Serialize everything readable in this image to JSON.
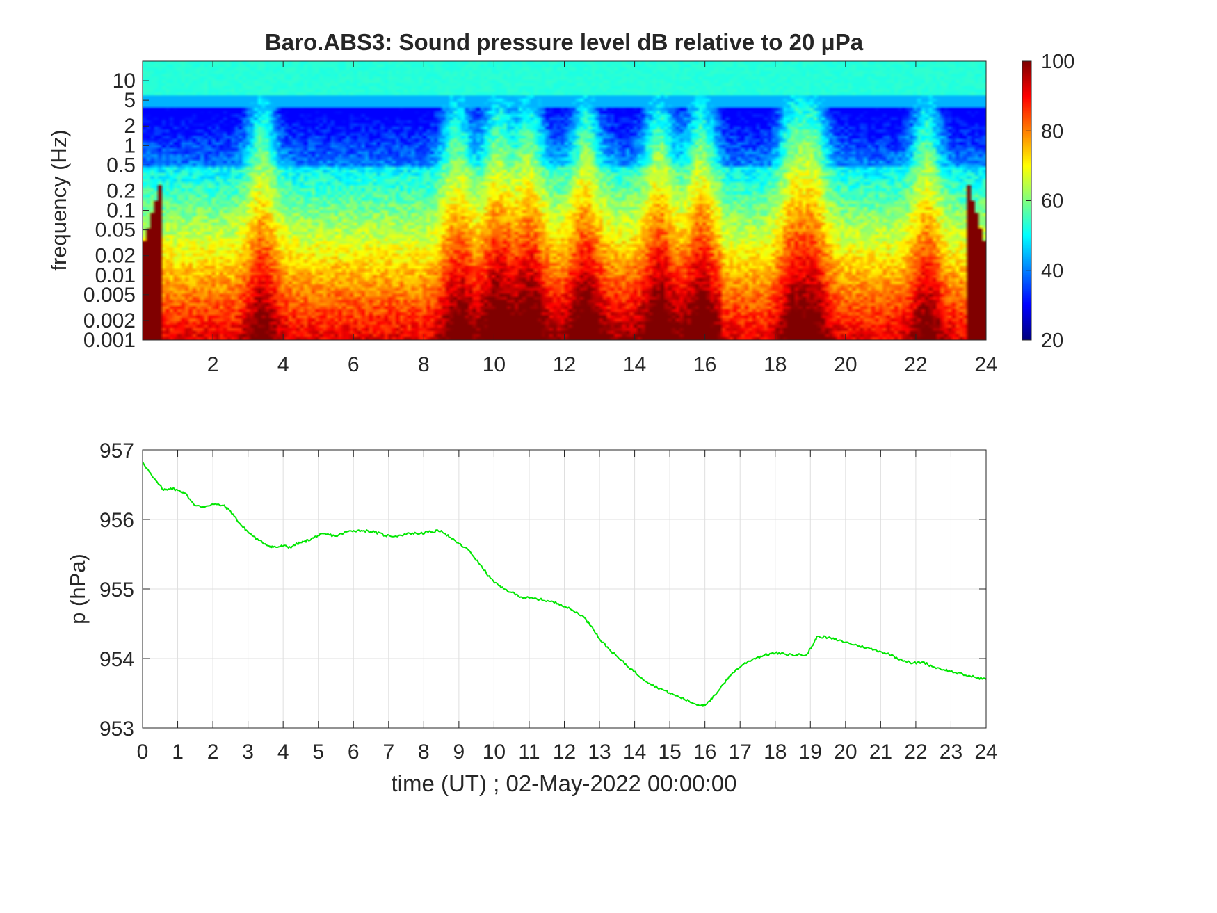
{
  "chart_data": [
    {
      "type": "heatmap",
      "title": "Baro.ABS3: Sound pressure level dB relative to 20 μPa",
      "xlabel": "",
      "ylabel": "frequency (Hz)",
      "x_range": [
        0,
        24
      ],
      "x_ticks": [
        "2",
        "4",
        "6",
        "8",
        "10",
        "12",
        "14",
        "16",
        "18",
        "20",
        "22",
        "24"
      ],
      "y_scale": "log",
      "y_range": [
        0.001,
        20
      ],
      "y_ticks": [
        "0.001",
        "0.002",
        "0.005",
        "0.01",
        "0.02",
        "0.05",
        "0.1",
        "0.2",
        "0.5",
        "1",
        "2",
        "5",
        "10"
      ],
      "colorbar": {
        "min": 20,
        "max": 100,
        "ticks": [
          "20",
          "40",
          "60",
          "80",
          "100"
        ],
        "colormap": "jet"
      },
      "activity_peaks_hours": [
        3.4,
        8.9,
        10.1,
        11.0,
        12.6,
        14.7,
        15.9,
        18.5,
        19.1,
        22.3
      ],
      "high_freq_band_db": 50,
      "quiet_band_hz": [
        0.5,
        4
      ],
      "grid": false
    },
    {
      "type": "line",
      "title": "",
      "xlabel": "time (UT) ; 02-May-2022 00:00:00",
      "ylabel": "p (hPa)",
      "xlim": [
        0,
        24
      ],
      "ylim": [
        953,
        957
      ],
      "x_ticks": [
        "0",
        "1",
        "2",
        "3",
        "4",
        "5",
        "6",
        "7",
        "8",
        "9",
        "10",
        "11",
        "12",
        "13",
        "14",
        "15",
        "16",
        "17",
        "18",
        "19",
        "20",
        "21",
        "22",
        "23",
        "24"
      ],
      "y_ticks": [
        "953",
        "954",
        "955",
        "956",
        "957"
      ],
      "grid": true,
      "line_color": "#00e600",
      "x": [
        0,
        0.3,
        0.6,
        0.8,
        1.0,
        1.2,
        1.5,
        1.7,
        2.0,
        2.3,
        2.5,
        2.8,
        3.0,
        3.3,
        3.6,
        3.8,
        4.0,
        4.2,
        4.4,
        4.6,
        4.8,
        5.0,
        5.2,
        5.5,
        5.8,
        6.0,
        6.3,
        6.6,
        6.9,
        7.2,
        7.6,
        7.9,
        8.2,
        8.5,
        8.8,
        9.0,
        9.3,
        9.6,
        9.9,
        10.2,
        10.5,
        10.8,
        11.0,
        11.3,
        11.6,
        11.9,
        12.2,
        12.5,
        12.8,
        13.0,
        13.3,
        13.6,
        13.9,
        14.2,
        14.5,
        14.8,
        15.1,
        15.4,
        15.7,
        15.9,
        16.0,
        16.2,
        16.5,
        16.8,
        17.1,
        17.4,
        17.7,
        18.0,
        18.3,
        18.6,
        18.9,
        19.05,
        19.2,
        19.5,
        19.8,
        20.1,
        20.4,
        20.7,
        21.0,
        21.3,
        21.6,
        21.9,
        22.2,
        22.5,
        22.8,
        23.1,
        23.4,
        23.7,
        24.0
      ],
      "values": [
        956.83,
        956.6,
        956.42,
        956.45,
        956.42,
        956.38,
        956.2,
        956.18,
        956.22,
        956.2,
        956.12,
        955.92,
        955.82,
        955.7,
        955.62,
        955.6,
        955.62,
        955.6,
        955.65,
        955.68,
        955.72,
        955.77,
        955.79,
        955.76,
        955.82,
        955.84,
        955.84,
        955.82,
        955.77,
        955.76,
        955.8,
        955.8,
        955.82,
        955.84,
        955.72,
        955.65,
        955.55,
        955.35,
        955.15,
        955.02,
        954.95,
        954.88,
        954.87,
        954.85,
        954.82,
        954.78,
        954.7,
        954.62,
        954.45,
        954.28,
        954.12,
        953.98,
        953.85,
        953.72,
        953.62,
        953.55,
        953.48,
        953.42,
        953.35,
        953.33,
        953.32,
        953.42,
        953.62,
        953.8,
        953.92,
        954.0,
        954.05,
        954.08,
        954.06,
        954.05,
        954.06,
        954.18,
        954.32,
        954.3,
        954.26,
        954.22,
        954.18,
        954.14,
        954.1,
        954.05,
        953.98,
        953.93,
        953.95,
        953.88,
        953.84,
        953.8,
        953.76,
        953.73,
        953.7
      ]
    }
  ]
}
